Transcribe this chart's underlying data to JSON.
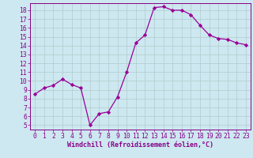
{
  "x": [
    0,
    1,
    2,
    3,
    4,
    5,
    6,
    7,
    8,
    9,
    10,
    11,
    12,
    13,
    14,
    15,
    16,
    17,
    18,
    19,
    20,
    21,
    22,
    23
  ],
  "y": [
    8.5,
    9.2,
    9.5,
    10.2,
    9.6,
    9.2,
    5.0,
    6.3,
    6.5,
    8.2,
    11.0,
    14.3,
    15.2,
    18.3,
    18.4,
    18.0,
    18.0,
    17.5,
    16.3,
    15.2,
    14.8,
    14.7,
    14.3,
    14.1
  ],
  "line_color": "#990099",
  "marker": "D",
  "marker_size": 2.2,
  "bg_color": "#cde8f0",
  "grid_color": "#b0cccc",
  "xlabel": "Windchill (Refroidissement éolien,°C)",
  "xlim": [
    -0.5,
    23.5
  ],
  "ylim": [
    4.5,
    18.8
  ],
  "yticks": [
    5,
    6,
    7,
    8,
    9,
    10,
    11,
    12,
    13,
    14,
    15,
    16,
    17,
    18
  ],
  "xticks": [
    0,
    1,
    2,
    3,
    4,
    5,
    6,
    7,
    8,
    9,
    10,
    11,
    12,
    13,
    14,
    15,
    16,
    17,
    18,
    19,
    20,
    21,
    22,
    23
  ],
  "tick_color": "#880088",
  "label_fontsize": 6.0,
  "tick_fontsize": 5.8,
  "spine_color": "#880088",
  "linewidth": 0.9
}
